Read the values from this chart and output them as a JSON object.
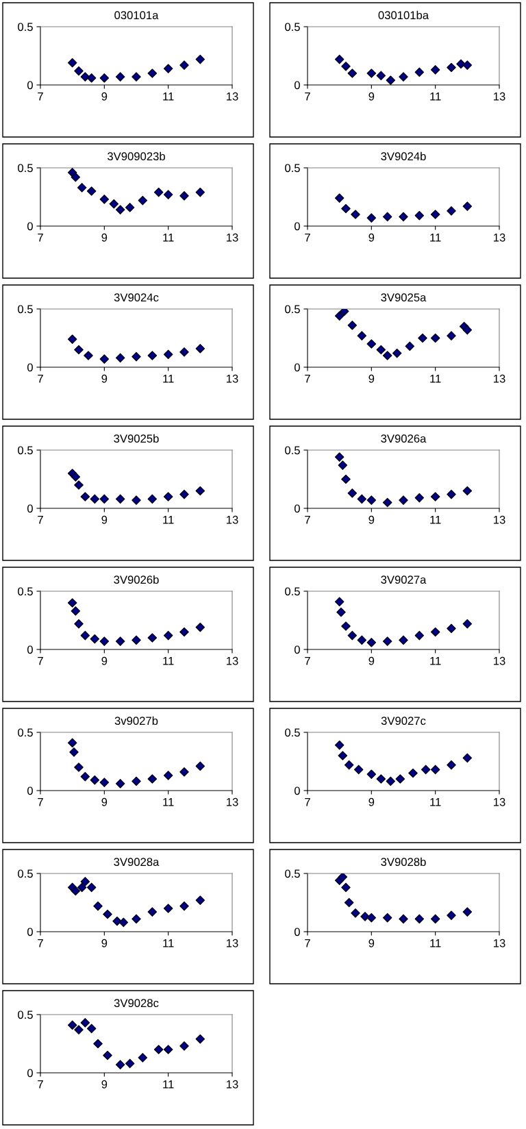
{
  "chart_data": [
    {
      "type": "scatter",
      "title": "030101a",
      "x": [
        8.0,
        8.2,
        8.4,
        8.6,
        9.0,
        9.5,
        10.0,
        10.5,
        11.0,
        11.5,
        12.0
      ],
      "values": [
        0.19,
        0.12,
        0.07,
        0.06,
        0.06,
        0.07,
        0.07,
        0.1,
        0.14,
        0.17,
        0.22
      ],
      "color": "#000080",
      "marker": "diamond",
      "xlim": [
        7,
        13
      ],
      "xticks": [
        7,
        9,
        11,
        13
      ],
      "ylim": [
        0,
        0.5
      ],
      "yticks": [
        0,
        0.5
      ],
      "grid": false
    },
    {
      "type": "scatter",
      "title": "030101ba",
      "x": [
        8.0,
        8.2,
        8.4,
        9.0,
        9.3,
        9.6,
        10.0,
        10.5,
        11.0,
        11.5,
        11.8,
        12.0
      ],
      "values": [
        0.22,
        0.16,
        0.1,
        0.1,
        0.08,
        0.04,
        0.07,
        0.11,
        0.13,
        0.15,
        0.18,
        0.17
      ],
      "color": "#000080",
      "marker": "diamond",
      "xlim": [
        7,
        13
      ],
      "xticks": [
        7,
        9,
        11,
        13
      ],
      "ylim": [
        0,
        0.5
      ],
      "yticks": [
        0,
        0.5
      ],
      "grid": false
    },
    {
      "type": "scatter",
      "title": "3V909023b",
      "x": [
        8.0,
        8.1,
        8.3,
        8.6,
        9.0,
        9.3,
        9.5,
        9.8,
        10.2,
        10.7,
        11.0,
        11.5,
        12.0
      ],
      "values": [
        0.46,
        0.42,
        0.33,
        0.3,
        0.23,
        0.19,
        0.14,
        0.16,
        0.22,
        0.29,
        0.27,
        0.26,
        0.29
      ],
      "color": "#000080",
      "marker": "diamond",
      "xlim": [
        7,
        13
      ],
      "xticks": [
        7,
        9,
        11,
        13
      ],
      "ylim": [
        0,
        0.5
      ],
      "yticks": [
        0,
        0.5
      ],
      "grid": false
    },
    {
      "type": "scatter",
      "title": "3V9024b",
      "x": [
        8.0,
        8.2,
        8.5,
        9.0,
        9.5,
        10.0,
        10.5,
        11.0,
        11.5,
        12.0
      ],
      "values": [
        0.24,
        0.15,
        0.1,
        0.07,
        0.08,
        0.08,
        0.09,
        0.1,
        0.13,
        0.17
      ],
      "color": "#000080",
      "marker": "diamond",
      "xlim": [
        7,
        13
      ],
      "xticks": [
        7,
        9,
        11,
        13
      ],
      "ylim": [
        0,
        0.5
      ],
      "yticks": [
        0,
        0.5
      ],
      "grid": false
    },
    {
      "type": "scatter",
      "title": "3V9024c",
      "x": [
        8.0,
        8.2,
        8.5,
        9.0,
        9.5,
        10.0,
        10.5,
        11.0,
        11.5,
        12.0
      ],
      "values": [
        0.24,
        0.15,
        0.1,
        0.07,
        0.08,
        0.09,
        0.1,
        0.11,
        0.13,
        0.16
      ],
      "color": "#000080",
      "marker": "diamond",
      "xlim": [
        7,
        13
      ],
      "xticks": [
        7,
        9,
        11,
        13
      ],
      "ylim": [
        0,
        0.5
      ],
      "yticks": [
        0,
        0.5
      ],
      "grid": false
    },
    {
      "type": "scatter",
      "title": "3V9025a",
      "x": [
        8.0,
        8.15,
        8.4,
        8.7,
        9.0,
        9.3,
        9.5,
        9.8,
        10.2,
        10.6,
        11.0,
        11.5,
        11.9,
        12.0
      ],
      "values": [
        0.44,
        0.48,
        0.36,
        0.27,
        0.2,
        0.15,
        0.1,
        0.12,
        0.18,
        0.25,
        0.25,
        0.27,
        0.35,
        0.32
      ],
      "color": "#000080",
      "marker": "diamond",
      "xlim": [
        7,
        13
      ],
      "xticks": [
        7,
        9,
        11,
        13
      ],
      "ylim": [
        0,
        0.5
      ],
      "yticks": [
        0,
        0.5
      ],
      "grid": false
    },
    {
      "type": "scatter",
      "title": "3V9025b",
      "x": [
        8.0,
        8.1,
        8.2,
        8.4,
        8.7,
        9.0,
        9.5,
        10.0,
        10.5,
        11.0,
        11.5,
        12.0
      ],
      "values": [
        0.3,
        0.27,
        0.2,
        0.1,
        0.08,
        0.08,
        0.08,
        0.07,
        0.08,
        0.1,
        0.12,
        0.15
      ],
      "color": "#000080",
      "marker": "diamond",
      "xlim": [
        7,
        13
      ],
      "xticks": [
        7,
        9,
        11,
        13
      ],
      "ylim": [
        0,
        0.5
      ],
      "yticks": [
        0,
        0.5
      ],
      "grid": false
    },
    {
      "type": "scatter",
      "title": "3V9026a",
      "x": [
        8.0,
        8.1,
        8.2,
        8.4,
        8.7,
        9.0,
        9.5,
        10.0,
        10.5,
        11.0,
        11.5,
        12.0
      ],
      "values": [
        0.44,
        0.37,
        0.25,
        0.13,
        0.08,
        0.07,
        0.05,
        0.07,
        0.09,
        0.1,
        0.12,
        0.15
      ],
      "color": "#000080",
      "marker": "diamond",
      "xlim": [
        7,
        13
      ],
      "xticks": [
        7,
        9,
        11,
        13
      ],
      "ylim": [
        0,
        0.5
      ],
      "yticks": [
        0,
        0.5
      ],
      "grid": false
    },
    {
      "type": "scatter",
      "title": "3V9026b",
      "x": [
        8.0,
        8.1,
        8.2,
        8.4,
        8.7,
        9.0,
        9.5,
        10.0,
        10.5,
        11.0,
        11.5,
        12.0
      ],
      "values": [
        0.4,
        0.33,
        0.22,
        0.12,
        0.09,
        0.07,
        0.07,
        0.08,
        0.1,
        0.12,
        0.15,
        0.19
      ],
      "color": "#000080",
      "marker": "diamond",
      "xlim": [
        7,
        13
      ],
      "xticks": [
        7,
        9,
        11,
        13
      ],
      "ylim": [
        0,
        0.5
      ],
      "yticks": [
        0,
        0.5
      ],
      "grid": false
    },
    {
      "type": "scatter",
      "title": "3V9027a",
      "x": [
        8.0,
        8.05,
        8.2,
        8.4,
        8.7,
        9.0,
        9.5,
        10.0,
        10.5,
        11.0,
        11.5,
        12.0
      ],
      "values": [
        0.41,
        0.32,
        0.2,
        0.12,
        0.08,
        0.06,
        0.07,
        0.08,
        0.12,
        0.15,
        0.18,
        0.22
      ],
      "color": "#000080",
      "marker": "diamond",
      "xlim": [
        7,
        13
      ],
      "xticks": [
        7,
        9,
        11,
        13
      ],
      "ylim": [
        0,
        0.5
      ],
      "yticks": [
        0,
        0.5
      ],
      "grid": false
    },
    {
      "type": "scatter",
      "title": "3v9027b",
      "x": [
        8.0,
        8.05,
        8.2,
        8.4,
        8.7,
        9.0,
        9.5,
        10.0,
        10.5,
        11.0,
        11.5,
        12.0
      ],
      "values": [
        0.41,
        0.33,
        0.2,
        0.12,
        0.09,
        0.07,
        0.06,
        0.08,
        0.1,
        0.13,
        0.16,
        0.21
      ],
      "color": "#000080",
      "marker": "diamond",
      "xlim": [
        7,
        13
      ],
      "xticks": [
        7,
        9,
        11,
        13
      ],
      "ylim": [
        0,
        0.5
      ],
      "yticks": [
        0,
        0.5
      ],
      "grid": false
    },
    {
      "type": "scatter",
      "title": "3V9027c",
      "x": [
        8.0,
        8.1,
        8.3,
        8.6,
        9.0,
        9.3,
        9.6,
        9.9,
        10.3,
        10.7,
        11.0,
        11.5,
        12.0
      ],
      "values": [
        0.39,
        0.3,
        0.22,
        0.18,
        0.14,
        0.1,
        0.08,
        0.1,
        0.15,
        0.18,
        0.18,
        0.22,
        0.28
      ],
      "color": "#000080",
      "marker": "diamond",
      "xlim": [
        7,
        13
      ],
      "xticks": [
        7,
        9,
        11,
        13
      ],
      "ylim": [
        0,
        0.5
      ],
      "yticks": [
        0,
        0.5
      ],
      "grid": false
    },
    {
      "type": "scatter",
      "title": "3V9028a",
      "x": [
        8.0,
        8.1,
        8.3,
        8.4,
        8.6,
        8.8,
        9.1,
        9.4,
        9.6,
        10.0,
        10.5,
        11.0,
        11.5,
        12.0
      ],
      "values": [
        0.38,
        0.35,
        0.38,
        0.43,
        0.38,
        0.22,
        0.15,
        0.09,
        0.08,
        0.11,
        0.17,
        0.2,
        0.22,
        0.27
      ],
      "color": "#000080",
      "marker": "diamond",
      "xlim": [
        7,
        13
      ],
      "xticks": [
        7,
        9,
        11,
        13
      ],
      "ylim": [
        0,
        0.5
      ],
      "yticks": [
        0,
        0.5
      ],
      "grid": false
    },
    {
      "type": "scatter",
      "title": "3V9028b",
      "x": [
        8.0,
        8.1,
        8.2,
        8.3,
        8.5,
        8.8,
        9.0,
        9.5,
        10.0,
        10.5,
        11.0,
        11.5,
        12.0
      ],
      "values": [
        0.44,
        0.47,
        0.38,
        0.25,
        0.16,
        0.13,
        0.12,
        0.12,
        0.11,
        0.11,
        0.11,
        0.14,
        0.17
      ],
      "color": "#000080",
      "marker": "diamond",
      "xlim": [
        7,
        13
      ],
      "xticks": [
        7,
        9,
        11,
        13
      ],
      "ylim": [
        0,
        0.5
      ],
      "yticks": [
        0,
        0.5
      ],
      "grid": false
    },
    {
      "type": "scatter",
      "title": "3V9028c",
      "x": [
        8.0,
        8.2,
        8.4,
        8.6,
        8.8,
        9.1,
        9.5,
        9.8,
        10.2,
        10.7,
        11.0,
        11.5,
        12.0
      ],
      "values": [
        0.41,
        0.37,
        0.43,
        0.38,
        0.25,
        0.15,
        0.07,
        0.08,
        0.13,
        0.2,
        0.2,
        0.23,
        0.29
      ],
      "color": "#000080",
      "marker": "diamond",
      "xlim": [
        7,
        13
      ],
      "xticks": [
        7,
        9,
        11,
        13
      ],
      "ylim": [
        0,
        0.5
      ],
      "yticks": [
        0,
        0.5
      ],
      "grid": false
    }
  ]
}
